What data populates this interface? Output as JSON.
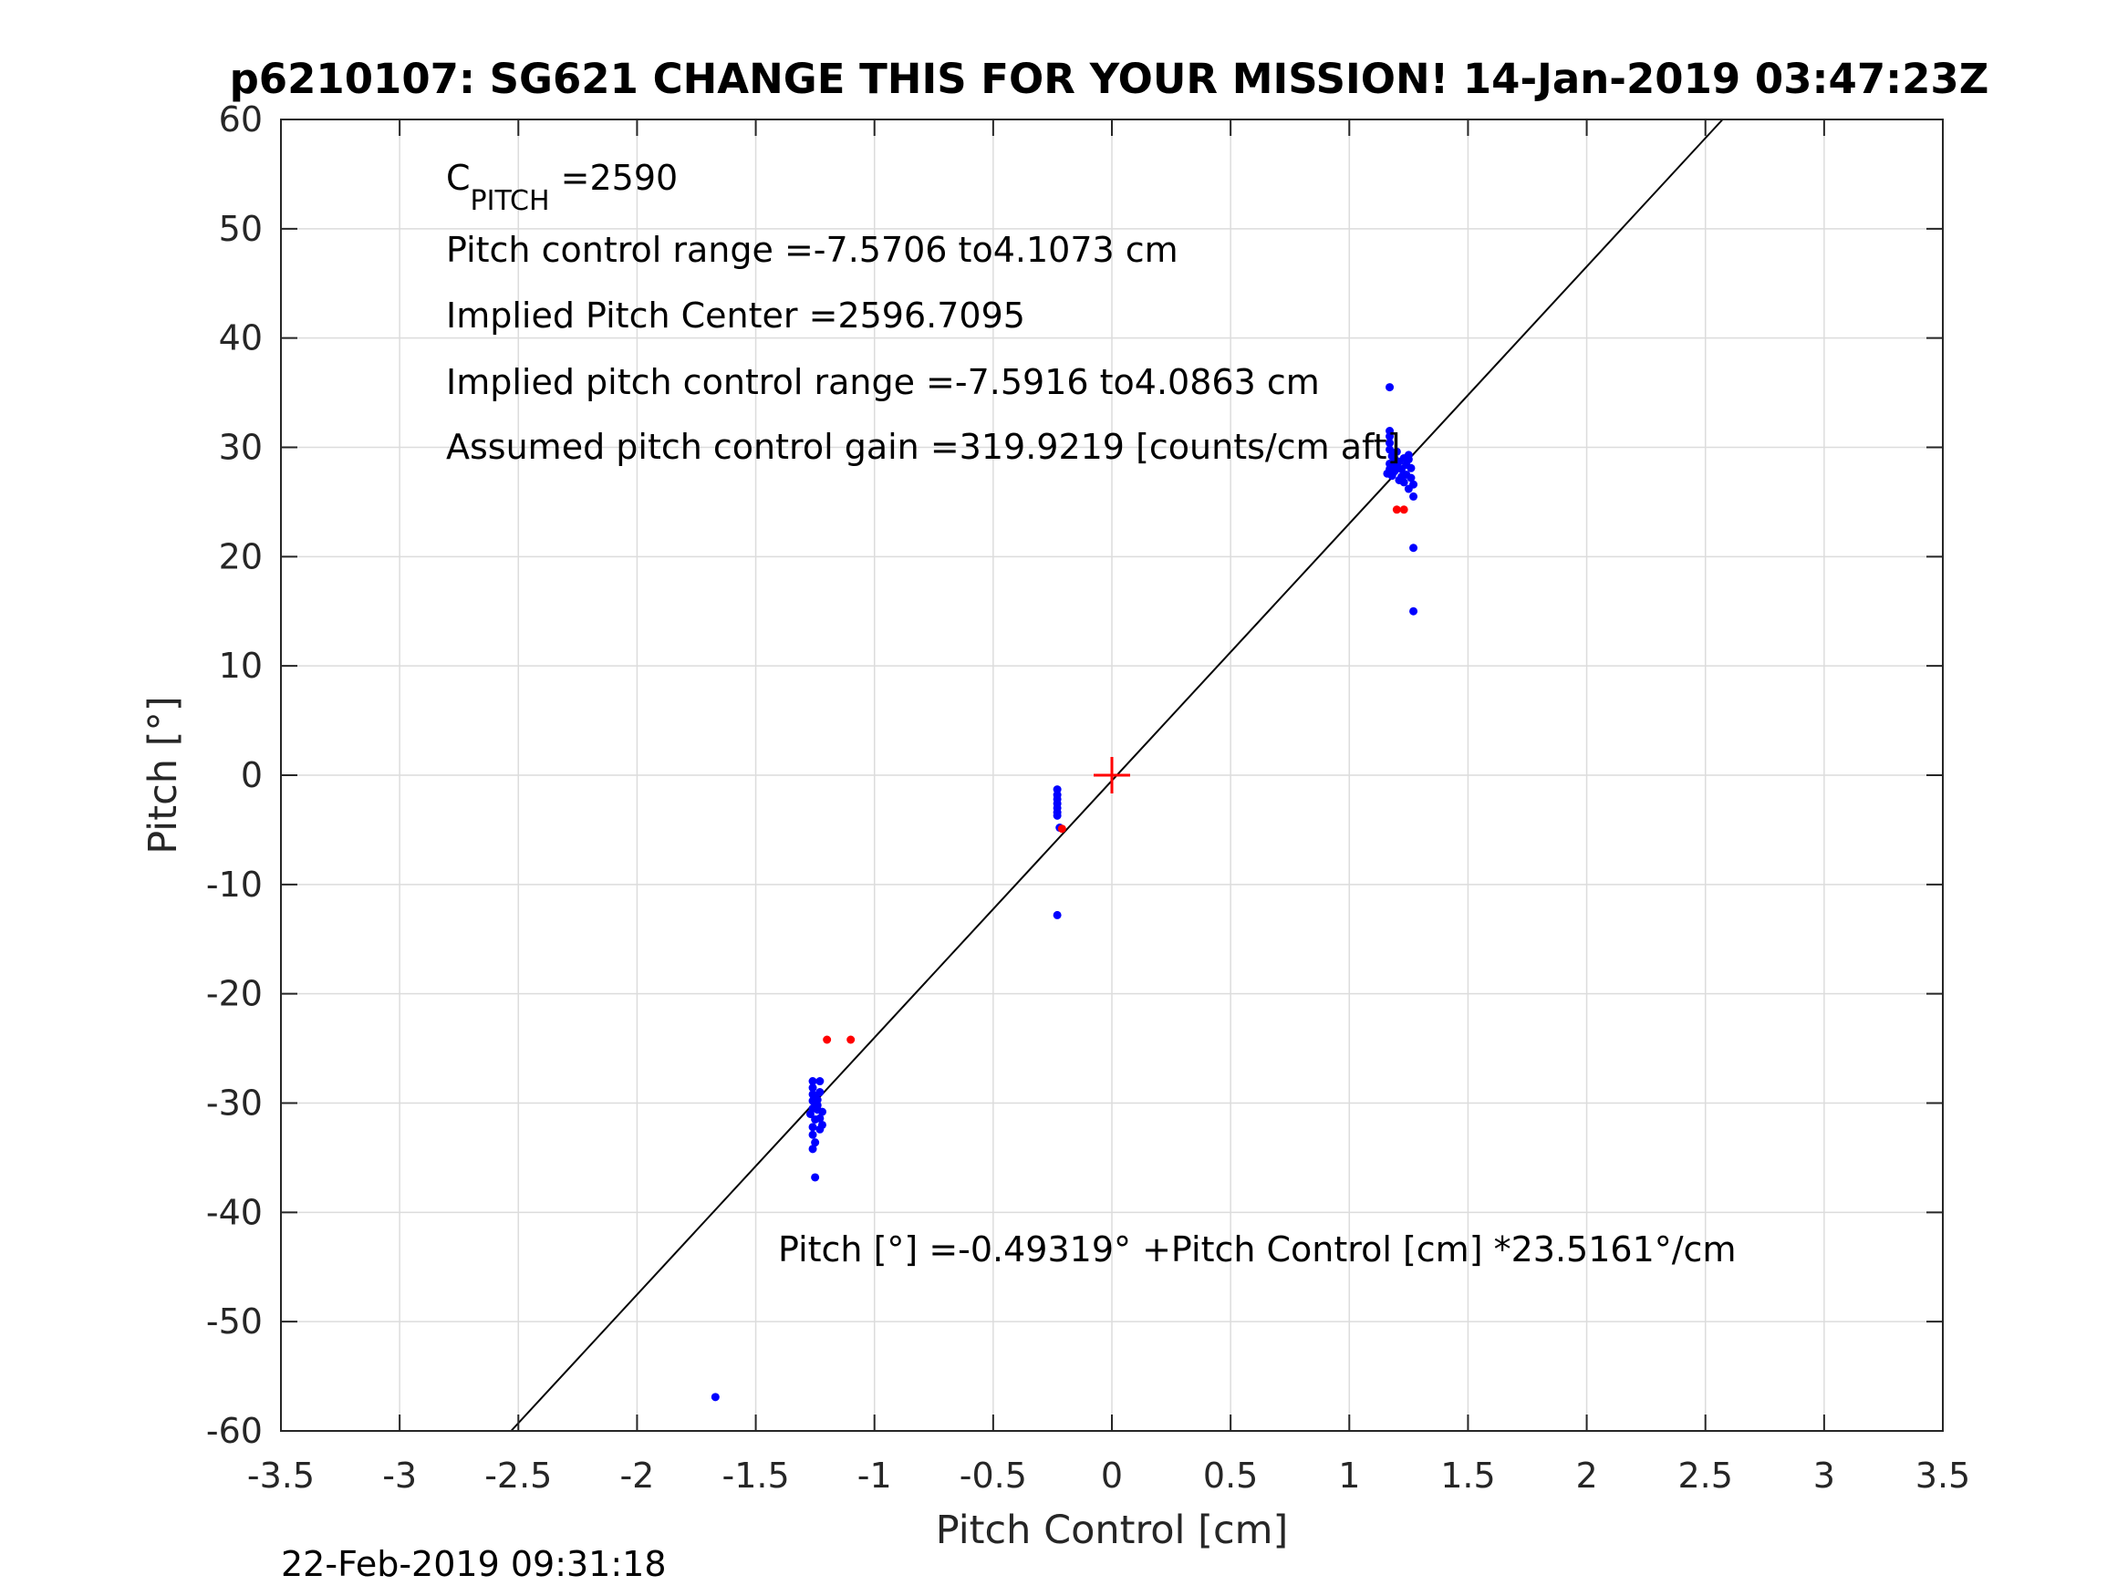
{
  "chart_data": {
    "type": "scatter",
    "title": "p6210107: SG621 CHANGE THIS FOR YOUR MISSION! 14-Jan-2019 03:47:23Z",
    "xlabel": "Pitch Control [cm]",
    "ylabel": "Pitch [°]",
    "xlim": [
      -3.5,
      3.5
    ],
    "ylim": [
      -60,
      60
    ],
    "x_ticks": [
      "-3.5",
      "-3",
      "-2.5",
      "-2",
      "-1.5",
      "-1",
      "-0.5",
      "0",
      "0.5",
      "1",
      "1.5",
      "2",
      "2.5",
      "3",
      "3.5"
    ],
    "y_ticks": [
      "-60",
      "-50",
      "-40",
      "-30",
      "-20",
      "-10",
      "0",
      "10",
      "20",
      "30",
      "40",
      "50",
      "60"
    ],
    "grid": true,
    "colors": {
      "blue_points": "#0000ff",
      "red_points": "#ff0000",
      "fit_line": "#000000",
      "grid": "#dcdcdc",
      "center_marker": "#ff0000"
    },
    "fit_line": {
      "intercept": -0.49319,
      "slope": 23.5161
    },
    "center_marker": {
      "x": 0,
      "y": 0
    },
    "annotations": {
      "c_pitch_main": "C",
      "c_pitch_sub": "PITCH",
      "c_pitch_value": " =2590",
      "control_range": "Pitch control range =-7.5706 to4.1073 cm",
      "implied_center": "Implied Pitch Center =2596.7095",
      "implied_range": "Implied pitch control range =-7.5916 to4.0863 cm",
      "gain": "Assumed pitch control gain =319.9219 [counts/cm aft]",
      "equation": "Pitch [°] =-0.49319° +Pitch Control [cm] *23.5161°/cm"
    },
    "series": [
      {
        "color": "blue",
        "points": [
          [
            1.17,
            35.5
          ],
          [
            1.17,
            31.5
          ],
          [
            1.17,
            31.0
          ],
          [
            1.17,
            30.4
          ],
          [
            1.17,
            29.8
          ],
          [
            1.18,
            29.2
          ],
          [
            1.17,
            28.5
          ],
          [
            1.17,
            28.0
          ],
          [
            1.16,
            27.6
          ],
          [
            1.18,
            27.4
          ],
          [
            1.19,
            27.8
          ],
          [
            1.2,
            28.3
          ],
          [
            1.21,
            28.7
          ],
          [
            1.22,
            28.0
          ],
          [
            1.22,
            27.3
          ],
          [
            1.23,
            26.8
          ],
          [
            1.24,
            27.5
          ],
          [
            1.24,
            28.4
          ],
          [
            1.25,
            28.9
          ],
          [
            1.25,
            29.3
          ],
          [
            1.26,
            28.1
          ],
          [
            1.26,
            27.2
          ],
          [
            1.27,
            26.6
          ],
          [
            1.27,
            25.5
          ],
          [
            1.25,
            26.2
          ],
          [
            1.23,
            29.0
          ],
          [
            1.2,
            29.6
          ],
          [
            1.21,
            27.0
          ],
          [
            1.19,
            29.0
          ],
          [
            1.18,
            27.9
          ],
          [
            1.27,
            20.8
          ],
          [
            1.27,
            15.0
          ],
          [
            -0.23,
            -1.3
          ],
          [
            -0.23,
            -1.8
          ],
          [
            -0.23,
            -2.2
          ],
          [
            -0.23,
            -2.6
          ],
          [
            -0.23,
            -3.0
          ],
          [
            -0.23,
            -3.4
          ],
          [
            -0.23,
            -3.7
          ],
          [
            -0.22,
            -4.8
          ],
          [
            -0.23,
            -12.8
          ],
          [
            -1.26,
            -28.0
          ],
          [
            -1.26,
            -28.6
          ],
          [
            -1.26,
            -29.2
          ],
          [
            -1.26,
            -29.8
          ],
          [
            -1.26,
            -30.5
          ],
          [
            -1.27,
            -31.0
          ],
          [
            -1.25,
            -31.5
          ],
          [
            -1.26,
            -32.2
          ],
          [
            -1.26,
            -32.9
          ],
          [
            -1.25,
            -33.6
          ],
          [
            -1.26,
            -34.2
          ],
          [
            -1.23,
            -28.0
          ],
          [
            -1.23,
            -29.0
          ],
          [
            -1.24,
            -29.7
          ],
          [
            -1.24,
            -30.6
          ],
          [
            -1.23,
            -31.4
          ],
          [
            -1.22,
            -32.0
          ],
          [
            -1.24,
            -30.2
          ],
          [
            -1.25,
            -29.4
          ],
          [
            -1.22,
            -30.8
          ],
          [
            -1.23,
            -32.4
          ],
          [
            -1.25,
            -36.8
          ],
          [
            -1.67,
            -56.9
          ]
        ]
      },
      {
        "color": "red",
        "points": [
          [
            1.2,
            24.3
          ],
          [
            1.23,
            24.3
          ],
          [
            -0.21,
            -4.9
          ],
          [
            -1.2,
            -24.2
          ],
          [
            -1.1,
            -24.2
          ]
        ]
      }
    ]
  },
  "footer": {
    "timestamp": "22-Feb-2019 09:31:18"
  }
}
